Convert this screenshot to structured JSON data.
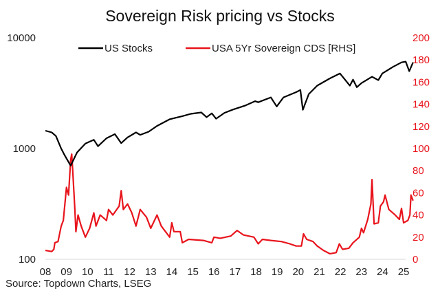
{
  "chart_data": {
    "type": "line",
    "title": "Sovereign Risk pricing vs Stocks",
    "source": "Source: Topdown Charts, LSEG",
    "legend_position": "top",
    "grid": false,
    "x_tick_labels": [
      "08",
      "09",
      "10",
      "11",
      "12",
      "13",
      "14",
      "15",
      "16",
      "17",
      "18",
      "19",
      "20",
      "21",
      "22",
      "23",
      "24",
      "25"
    ],
    "x_range": [
      2008,
      2025.5
    ],
    "left_axis": {
      "scale": "log",
      "range": [
        100,
        10000
      ],
      "tick_labels": [
        "100",
        "1000",
        "10000"
      ]
    },
    "right_axis": {
      "scale": "linear",
      "range": [
        0,
        200
      ],
      "tick_labels": [
        "0",
        "20",
        "40",
        "60",
        "80",
        "100",
        "120",
        "140",
        "160",
        "180",
        "200"
      ],
      "color": "#e8141c"
    },
    "series": [
      {
        "name": "US Stocks",
        "axis": "left",
        "color": "#000000",
        "x": [
          2008.0,
          2008.3,
          2008.5,
          2008.75,
          2008.9,
          2009.2,
          2009.5,
          2009.9,
          2010.3,
          2010.5,
          2010.9,
          2011.3,
          2011.6,
          2011.9,
          2012.3,
          2012.5,
          2012.9,
          2013.3,
          2013.9,
          2014.5,
          2014.9,
          2015.4,
          2015.65,
          2015.9,
          2016.1,
          2016.5,
          2016.9,
          2017.5,
          2017.95,
          2018.1,
          2018.7,
          2018.98,
          2019.3,
          2019.9,
          2020.1,
          2020.22,
          2020.5,
          2020.9,
          2021.5,
          2021.98,
          2022.45,
          2022.6,
          2022.78,
          2023.0,
          2023.5,
          2023.8,
          2023.99,
          2024.5,
          2024.9,
          2025.1,
          2025.27,
          2025.45
        ],
        "y": [
          1450,
          1400,
          1300,
          1000,
          880,
          700,
          920,
          1110,
          1200,
          1050,
          1240,
          1350,
          1120,
          1260,
          1400,
          1330,
          1420,
          1600,
          1840,
          1960,
          2060,
          2120,
          1920,
          2080,
          1860,
          2100,
          2250,
          2450,
          2680,
          2620,
          2900,
          2400,
          2900,
          3230,
          3380,
          2240,
          3100,
          3700,
          4300,
          4770,
          3700,
          4200,
          3580,
          3900,
          4450,
          4150,
          4770,
          5470,
          6000,
          6100,
          5000,
          6000
        ]
      },
      {
        "name": "USA 5Yr Sovereign CDS [RHS]",
        "axis": "right",
        "color": "#e8141c",
        "x": [
          2008.0,
          2008.3,
          2008.4,
          2008.45,
          2008.6,
          2008.75,
          2008.85,
          2009.0,
          2009.1,
          2009.2,
          2009.25,
          2009.3,
          2009.4,
          2009.45,
          2009.55,
          2009.7,
          2009.9,
          2010.1,
          2010.3,
          2010.4,
          2010.6,
          2010.9,
          2011.0,
          2011.2,
          2011.5,
          2011.6,
          2011.7,
          2011.9,
          2012.1,
          2012.3,
          2012.5,
          2012.8,
          2013.0,
          2013.3,
          2013.5,
          2013.9,
          2014.0,
          2014.1,
          2014.4,
          2014.5,
          2014.8,
          2015.5,
          2015.9,
          2016.0,
          2016.3,
          2016.8,
          2017.1,
          2017.4,
          2017.9,
          2018.1,
          2018.3,
          2018.7,
          2019.2,
          2019.6,
          2019.9,
          2020.15,
          2020.25,
          2020.4,
          2020.7,
          2020.9,
          2021.2,
          2021.5,
          2021.8,
          2021.95,
          2022.1,
          2022.4,
          2022.6,
          2022.9,
          2023.0,
          2023.1,
          2023.3,
          2023.45,
          2023.5,
          2023.58,
          2023.6,
          2023.8,
          2023.9,
          2024.05,
          2024.12,
          2024.3,
          2024.6,
          2024.8,
          2024.9,
          2025.0,
          2025.2,
          2025.3,
          2025.35,
          2025.45
        ],
        "y": [
          8,
          7,
          9,
          15,
          16,
          30,
          35,
          65,
          58,
          90,
          95,
          80,
          45,
          25,
          40,
          30,
          20,
          28,
          42,
          30,
          40,
          35,
          45,
          40,
          48,
          62,
          45,
          50,
          42,
          30,
          45,
          38,
          28,
          40,
          30,
          20,
          33,
          25,
          25,
          15,
          18,
          17,
          15,
          20,
          19,
          21,
          26,
          22,
          20,
          14,
          18,
          17,
          16,
          14,
          12,
          12,
          23,
          18,
          16,
          12,
          8,
          5,
          6,
          14,
          9,
          10,
          15,
          20,
          28,
          24,
          36,
          50,
          72,
          40,
          32,
          33,
          48,
          52,
          58,
          45,
          40,
          36,
          46,
          33,
          35,
          40,
          58,
          53
        ]
      }
    ]
  }
}
